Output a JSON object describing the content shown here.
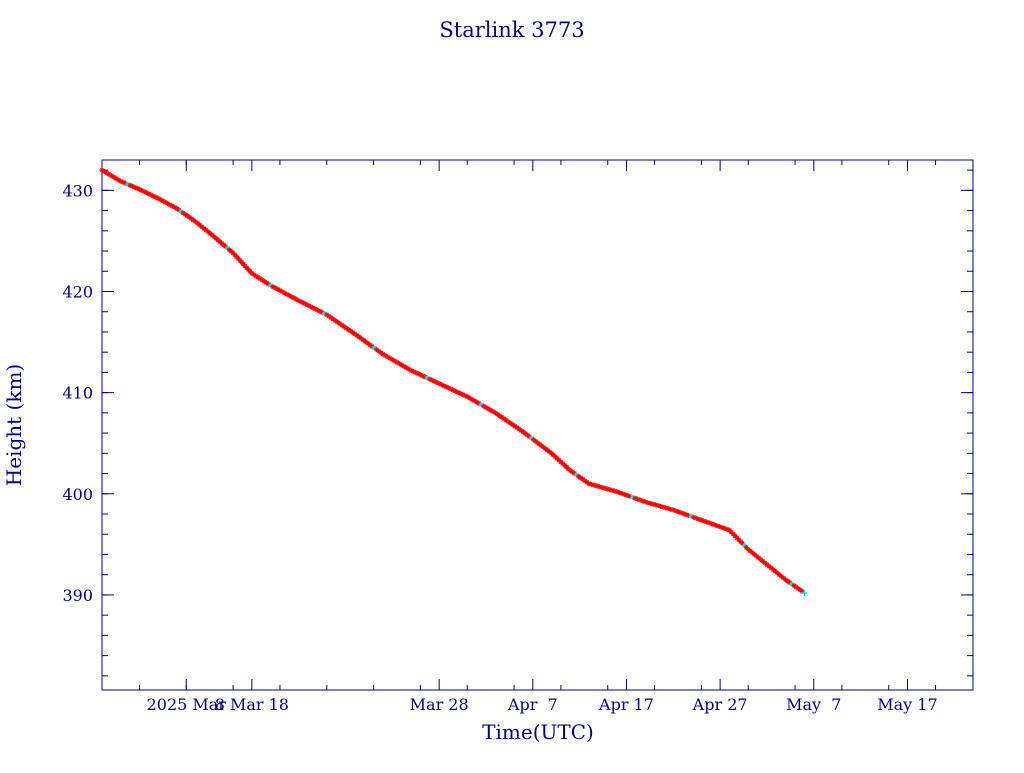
{
  "chart_data": {
    "type": "line",
    "title": "Starlink 3773",
    "xlabel": "Time(UTC)",
    "ylabel": "Height (km)",
    "x_ticks": [
      {
        "date": "2025-03-01",
        "label": "2025 Mar"
      },
      {
        "date": "2025-03-08",
        "label": "8 Mar 18"
      },
      {
        "date": "2025-03-28",
        "label": "Mar 28"
      },
      {
        "date": "2025-04-07",
        "label": "Apr  7"
      },
      {
        "date": "2025-04-17",
        "label": "Apr 17"
      },
      {
        "date": "2025-04-27",
        "label": "Apr 27"
      },
      {
        "date": "2025-05-07",
        "label": "May  7"
      },
      {
        "date": "2025-05-17",
        "label": "May 17"
      }
    ],
    "y_ticks": [
      390,
      400,
      410,
      420,
      430
    ],
    "xlim": [
      "2025-02-20",
      "2025-05-24"
    ],
    "ylim": [
      380.6,
      433.0
    ],
    "grid": false,
    "colors": {
      "axis": "#00008b",
      "line": "#000000",
      "marker": "#ff0000",
      "marker_alt": "#00e5ff"
    },
    "series": [
      {
        "values": [
          {
            "x": "2025-02-20",
            "y": 432.0
          },
          {
            "x": "2025-02-22",
            "y": 430.9
          },
          {
            "x": "2025-02-24",
            "y": 430.1
          },
          {
            "x": "2025-02-26",
            "y": 429.2
          },
          {
            "x": "2025-02-28",
            "y": 428.2
          },
          {
            "x": "2025-03-02",
            "y": 426.9
          },
          {
            "x": "2025-03-04",
            "y": 425.4
          },
          {
            "x": "2025-03-06",
            "y": 423.8
          },
          {
            "x": "2025-03-08",
            "y": 421.8
          },
          {
            "x": "2025-03-10",
            "y": 420.6
          },
          {
            "x": "2025-03-13",
            "y": 419.1
          },
          {
            "x": "2025-03-16",
            "y": 417.7
          },
          {
            "x": "2025-03-19",
            "y": 415.8
          },
          {
            "x": "2025-03-22",
            "y": 413.8
          },
          {
            "x": "2025-03-25",
            "y": 412.2
          },
          {
            "x": "2025-03-28",
            "y": 410.9
          },
          {
            "x": "2025-03-31",
            "y": 409.6
          },
          {
            "x": "2025-04-03",
            "y": 408.0
          },
          {
            "x": "2025-04-06",
            "y": 406.1
          },
          {
            "x": "2025-04-09",
            "y": 404.0
          },
          {
            "x": "2025-04-11",
            "y": 402.3
          },
          {
            "x": "2025-04-13",
            "y": 401.0
          },
          {
            "x": "2025-04-16",
            "y": 400.2
          },
          {
            "x": "2025-04-19",
            "y": 399.2
          },
          {
            "x": "2025-04-22",
            "y": 398.4
          },
          {
            "x": "2025-04-25",
            "y": 397.4
          },
          {
            "x": "2025-04-28",
            "y": 396.4
          },
          {
            "x": "2025-04-30",
            "y": 394.5
          },
          {
            "x": "2025-05-02",
            "y": 393.0
          },
          {
            "x": "2025-05-04",
            "y": 391.5
          },
          {
            "x": "2025-05-06",
            "y": 390.2
          }
        ]
      }
    ]
  }
}
